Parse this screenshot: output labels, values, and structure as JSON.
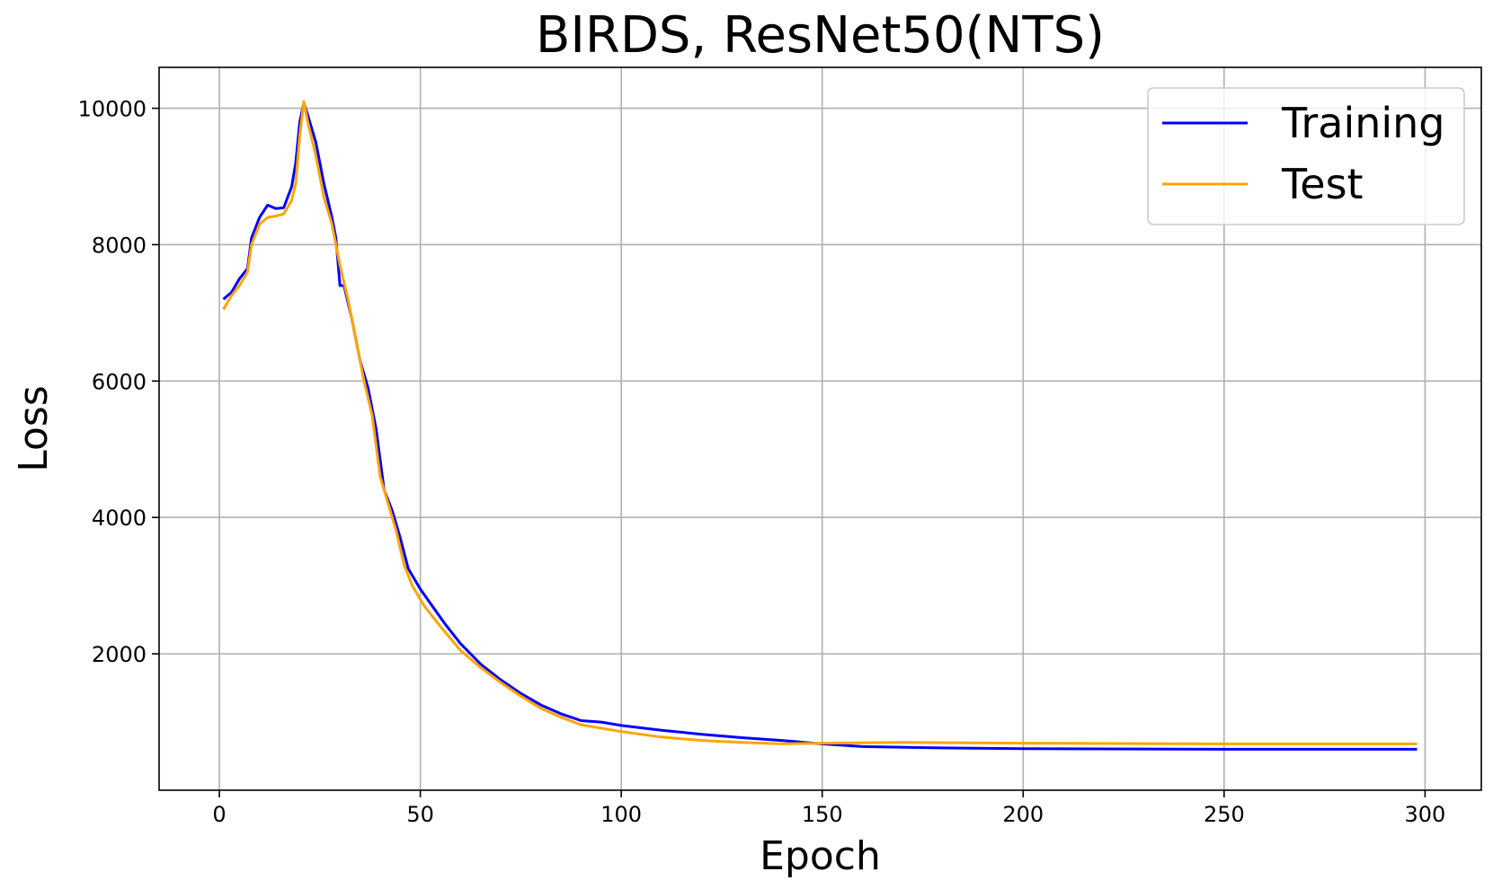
{
  "chart_data": {
    "type": "line",
    "title": "BIRDS, ResNet50(NTS)",
    "xlabel": "Epoch",
    "ylabel": "Loss",
    "xlim": [
      -15,
      314
    ],
    "ylim": [
      0,
      10600
    ],
    "xticks": [
      0,
      50,
      100,
      150,
      200,
      250,
      300
    ],
    "yticks": [
      2000,
      4000,
      6000,
      8000,
      10000
    ],
    "grid": true,
    "legend_position": "top-right",
    "series": [
      {
        "name": "Training",
        "color": "#0000ff",
        "points": [
          [
            1,
            7200
          ],
          [
            3,
            7300
          ],
          [
            5,
            7500
          ],
          [
            7,
            7650
          ],
          [
            8,
            8100
          ],
          [
            10,
            8400
          ],
          [
            12,
            8580
          ],
          [
            14,
            8530
          ],
          [
            16,
            8540
          ],
          [
            18,
            8850
          ],
          [
            19,
            9200
          ],
          [
            20,
            9800
          ],
          [
            21,
            10080
          ],
          [
            22,
            9900
          ],
          [
            24,
            9500
          ],
          [
            26,
            8900
          ],
          [
            28,
            8400
          ],
          [
            29,
            8100
          ],
          [
            30,
            7400
          ],
          [
            31,
            7400
          ],
          [
            33,
            6900
          ],
          [
            35,
            6300
          ],
          [
            37,
            5900
          ],
          [
            39,
            5300
          ],
          [
            41,
            4400
          ],
          [
            43,
            4100
          ],
          [
            45,
            3700
          ],
          [
            47,
            3250
          ],
          [
            50,
            2950
          ],
          [
            53,
            2700
          ],
          [
            56,
            2450
          ],
          [
            60,
            2150
          ],
          [
            65,
            1850
          ],
          [
            70,
            1620
          ],
          [
            75,
            1420
          ],
          [
            80,
            1250
          ],
          [
            85,
            1120
          ],
          [
            90,
            1020
          ],
          [
            95,
            1000
          ],
          [
            100,
            950
          ],
          [
            110,
            880
          ],
          [
            120,
            820
          ],
          [
            130,
            770
          ],
          [
            140,
            730
          ],
          [
            150,
            680
          ],
          [
            160,
            640
          ],
          [
            180,
            620
          ],
          [
            200,
            610
          ],
          [
            250,
            600
          ],
          [
            298,
            600
          ]
        ]
      },
      {
        "name": "Test",
        "color": "#ffa500",
        "points": [
          [
            1,
            7050
          ],
          [
            3,
            7250
          ],
          [
            5,
            7400
          ],
          [
            7,
            7600
          ],
          [
            8,
            8000
          ],
          [
            10,
            8300
          ],
          [
            12,
            8400
          ],
          [
            14,
            8420
          ],
          [
            16,
            8450
          ],
          [
            18,
            8650
          ],
          [
            19,
            8900
          ],
          [
            20,
            9600
          ],
          [
            21,
            10100
          ],
          [
            22,
            9800
          ],
          [
            24,
            9300
          ],
          [
            26,
            8700
          ],
          [
            28,
            8300
          ],
          [
            30,
            7700
          ],
          [
            32,
            7200
          ],
          [
            34,
            6600
          ],
          [
            36,
            6000
          ],
          [
            38,
            5500
          ],
          [
            40,
            4600
          ],
          [
            42,
            4200
          ],
          [
            44,
            3800
          ],
          [
            46,
            3300
          ],
          [
            48,
            3000
          ],
          [
            51,
            2700
          ],
          [
            55,
            2400
          ],
          [
            60,
            2050
          ],
          [
            65,
            1800
          ],
          [
            70,
            1580
          ],
          [
            75,
            1380
          ],
          [
            80,
            1200
          ],
          [
            85,
            1070
          ],
          [
            90,
            960
          ],
          [
            100,
            860
          ],
          [
            110,
            780
          ],
          [
            120,
            730
          ],
          [
            130,
            700
          ],
          [
            140,
            680
          ],
          [
            150,
            690
          ],
          [
            170,
            700
          ],
          [
            200,
            690
          ],
          [
            250,
            680
          ],
          [
            298,
            680
          ]
        ]
      }
    ]
  }
}
